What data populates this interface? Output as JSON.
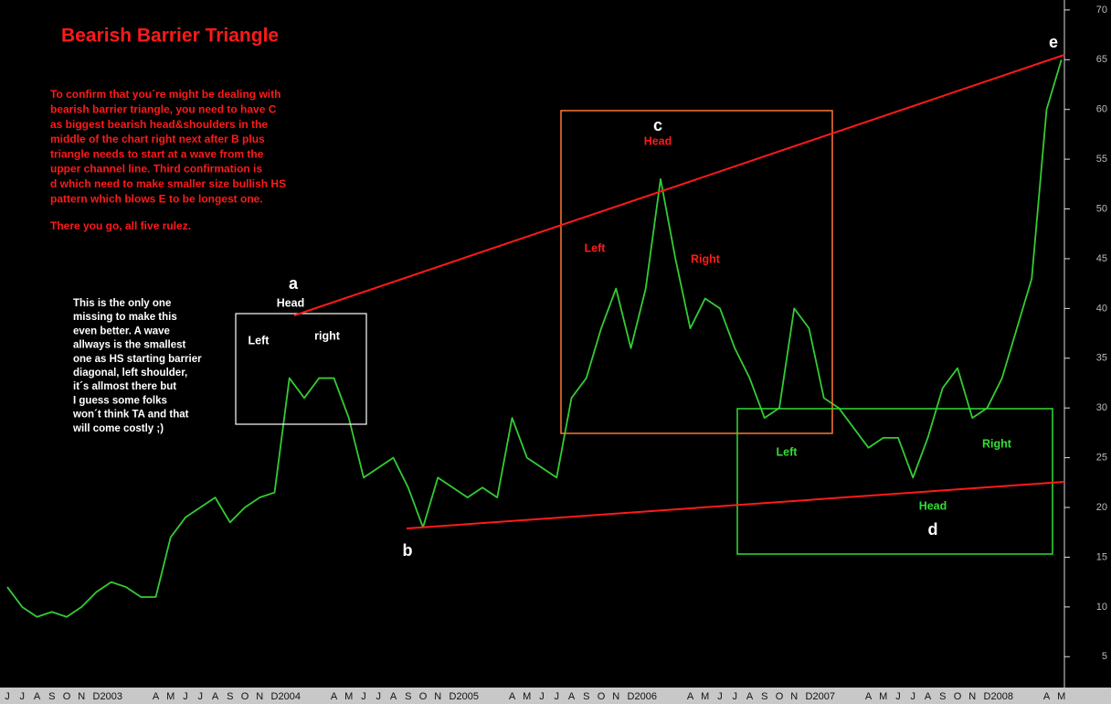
{
  "chart_data": {
    "type": "line",
    "title": "Bearish Barrier Triangle",
    "description": [
      "To confirm that you´re might be dealing with",
      "bearish barrier triangle, you need to have C",
      "as biggest bearish head&shoulders in the",
      "middle of the chart right next after B plus",
      "triangle needs to start at a wave from the",
      "upper channel line. Third confirmation is",
      "d which need to make smaller size bullish HS",
      "pattern which blows E to be longest one."
    ],
    "conclusion": "There you go, all five rulez.",
    "note": [
      "This is the only one",
      "missing to make this",
      "even better. A wave",
      "allways is the smallest",
      "one as HS starting barrier",
      "diagonal, left shoulder,",
      "it´s allmost there but",
      "I guess some folks",
      "won´t think TA and that",
      "will come costly ;)"
    ],
    "waves": [
      "a",
      "b",
      "c",
      "d",
      "e"
    ],
    "pattern_a": [
      "Head",
      "Left",
      "right"
    ],
    "pattern_c": [
      "Head",
      "Left",
      "Right"
    ],
    "pattern_d": [
      "Head",
      "Left",
      "Right"
    ],
    "categories": [
      "J",
      "J",
      "A",
      "S",
      "O",
      "N",
      "D",
      "2003",
      null,
      null,
      "A",
      "M",
      "J",
      "J",
      "A",
      "S",
      "O",
      "N",
      "D",
      "2004",
      null,
      null,
      "A",
      "M",
      "J",
      "J",
      "A",
      "S",
      "O",
      "N",
      "D",
      "2005",
      null,
      null,
      "A",
      "M",
      "J",
      "J",
      "A",
      "S",
      "O",
      "N",
      "D",
      "2006",
      null,
      null,
      "A",
      "M",
      "J",
      "J",
      "A",
      "S",
      "O",
      "N",
      "D",
      "2007",
      null,
      null,
      "A",
      "M",
      "J",
      "J",
      "A",
      "S",
      "O",
      "N",
      "D",
      "2008",
      null,
      null,
      "A",
      "M"
    ],
    "values": [
      12,
      10,
      9,
      9.5,
      9,
      10,
      11.5,
      12.5,
      12,
      11,
      11,
      17,
      19,
      20,
      21,
      18.5,
      20,
      21,
      21.5,
      33,
      31,
      33,
      33,
      29,
      23,
      24,
      25,
      22,
      18,
      23,
      22,
      21,
      22,
      21,
      29,
      25,
      24,
      23,
      31,
      33,
      38,
      42,
      36,
      42,
      53,
      45,
      38,
      41,
      40,
      36,
      33,
      29,
      30,
      40,
      38,
      31,
      30,
      28,
      26,
      27,
      27,
      23,
      27,
      32,
      34,
      29,
      30,
      33,
      38,
      43,
      60,
      65
    ],
    "color": "#33cc33",
    "ylim": [
      1.9,
      71
    ],
    "yticks": [
      5,
      10,
      15,
      20,
      25,
      30,
      35,
      40,
      45,
      50,
      55,
      60,
      65,
      70
    ]
  }
}
